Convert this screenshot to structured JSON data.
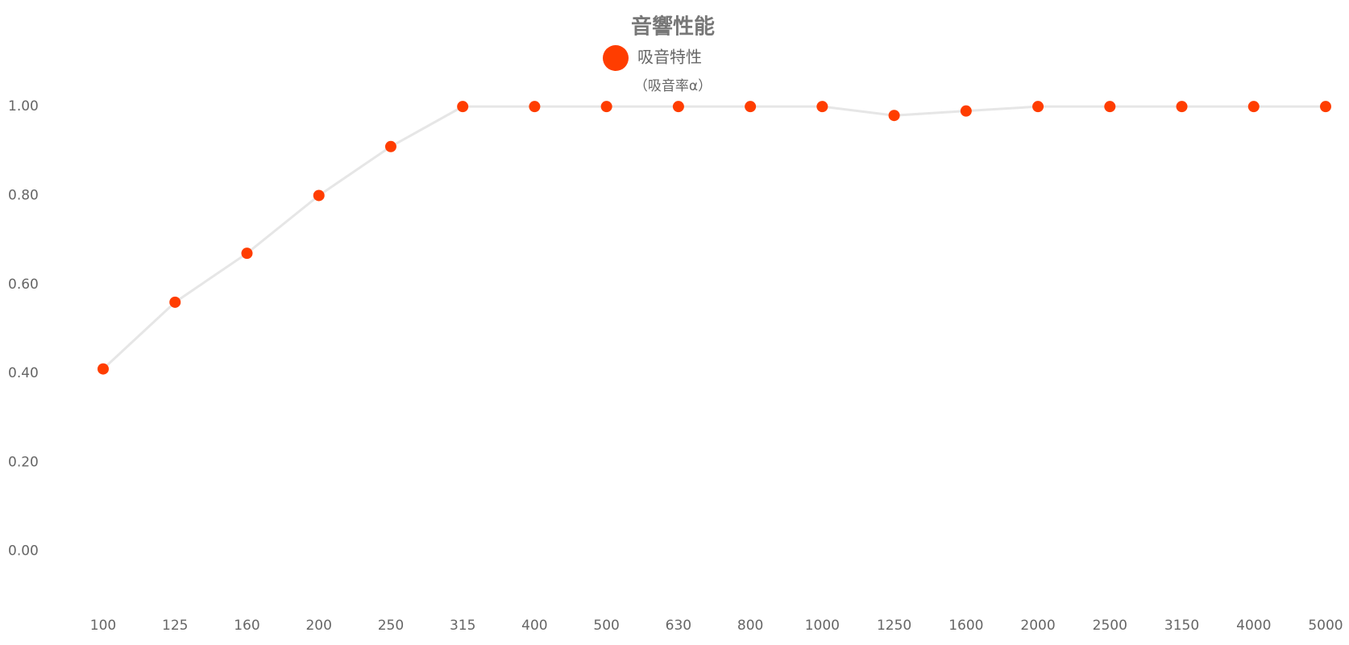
{
  "chart_data": {
    "type": "line",
    "title": "音響性能",
    "subtitle": "（吸音率α）",
    "categories": [
      "100",
      "125",
      "160",
      "200",
      "250",
      "315",
      "400",
      "500",
      "630",
      "800",
      "1000",
      "1250",
      "1600",
      "2000",
      "2500",
      "3150",
      "4000",
      "5000"
    ],
    "series": [
      {
        "name": "吸音特性",
        "color": "#ff3d00",
        "line_color": "#e6e6e6",
        "values": [
          0.41,
          0.56,
          0.67,
          0.8,
          0.91,
          1.0,
          1.0,
          1.0,
          1.0,
          1.0,
          1.0,
          0.98,
          0.99,
          1.0,
          1.0,
          1.0,
          1.0,
          1.0
        ]
      }
    ],
    "ylim": [
      -0.16,
      1.1
    ],
    "yticks": [
      {
        "value": 0,
        "label": "0.00"
      },
      {
        "value": 0.2,
        "label": "0.20"
      },
      {
        "value": 0.4,
        "label": "0.40"
      },
      {
        "value": 0.6,
        "label": "0.60"
      },
      {
        "value": 0.8,
        "label": "0.80"
      },
      {
        "value": 1,
        "label": "1.00"
      }
    ],
    "grid": false,
    "legend": "top"
  }
}
